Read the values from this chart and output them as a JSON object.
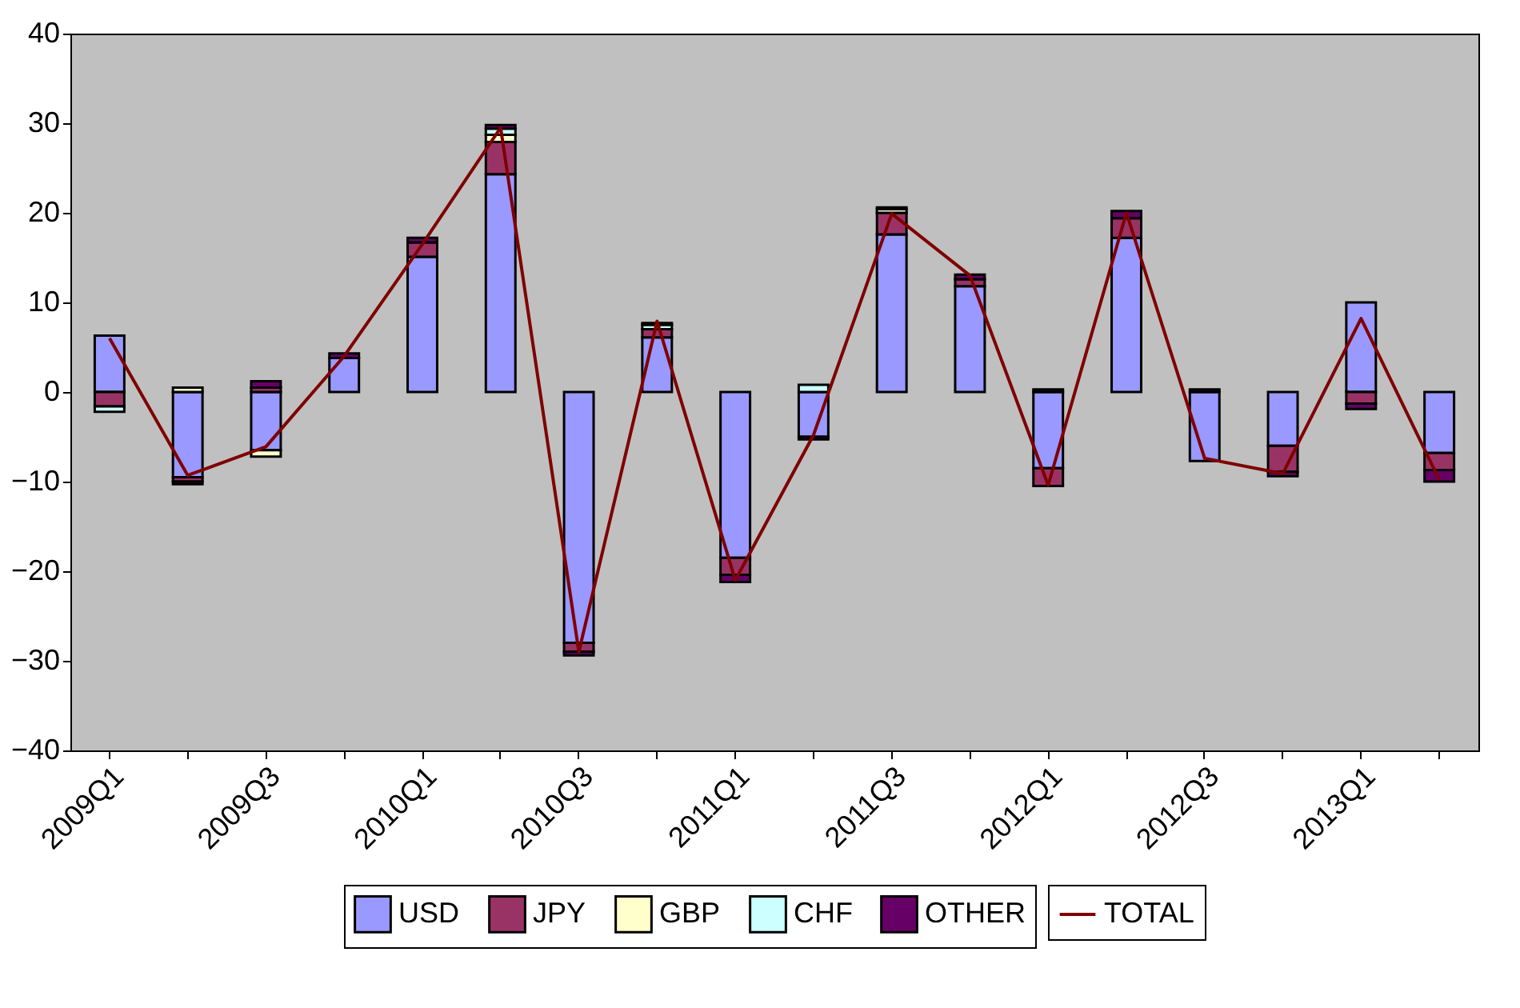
{
  "chart_data": {
    "type": "bar",
    "stacked": true,
    "legend": "bottom",
    "grid": false,
    "categories": [
      "2009Q1",
      null,
      "2009Q3",
      null,
      "2010Q1",
      null,
      "2010Q3",
      null,
      "2011Q1",
      null,
      "2011Q3",
      null,
      "2012Q1",
      null,
      "2012Q3",
      null,
      "2013Q1",
      null
    ],
    "ylim": [
      -40,
      40
    ],
    "yticks": [
      -40,
      -30,
      -20,
      -10,
      0,
      10,
      20,
      30,
      40
    ],
    "series": [
      {
        "name": "USD",
        "color": "#9999ff",
        "values": [
          6.3,
          -9.5,
          -6.5,
          3.8,
          15.1,
          24.3,
          -28,
          6.1,
          -18.5,
          -5,
          17.6,
          11.8,
          -8.5,
          17.2,
          -7.7,
          -6,
          10,
          -6.8
        ]
      },
      {
        "name": "JPY",
        "color": "#993366",
        "values": [
          -1.6,
          -0.5,
          0.5,
          null,
          1.6,
          3.6,
          -1,
          0.9,
          -1.9,
          null,
          2.4,
          0.8,
          -2,
          2.2,
          null,
          -2.9,
          -1.3,
          -1.9
        ]
      },
      {
        "name": "GBP",
        "color": "#ffffcc",
        "values": [
          null,
          0.5,
          -0.7,
          null,
          null,
          0.8,
          null,
          null,
          null,
          null,
          0.4,
          null,
          null,
          null,
          null,
          null,
          null,
          null
        ]
      },
      {
        "name": "CHF",
        "color": "#ccffff",
        "values": [
          -0.6,
          null,
          null,
          null,
          null,
          0.7,
          null,
          0.5,
          null,
          0.8,
          0.2,
          null,
          null,
          null,
          null,
          null,
          null,
          null
        ]
      },
      {
        "name": "OTHER",
        "color": "#660066",
        "values": [
          null,
          -0.3,
          0.7,
          0.5,
          0.5,
          0.4,
          -0.4,
          0.2,
          -0.8,
          -0.3,
          null,
          0.5,
          0.3,
          0.8,
          0.3,
          -0.5,
          -0.6,
          -1.3
        ]
      },
      {
        "name": "TOTAL",
        "type": "line",
        "color": "#800000",
        "values": [
          6,
          -9.3,
          -6.1,
          4,
          16.5,
          29.5,
          -29,
          7.9,
          -21,
          -4.8,
          19.9,
          13,
          -10.4,
          20,
          -7.4,
          -9.1,
          8.2,
          -9.8
        ]
      }
    ]
  }
}
